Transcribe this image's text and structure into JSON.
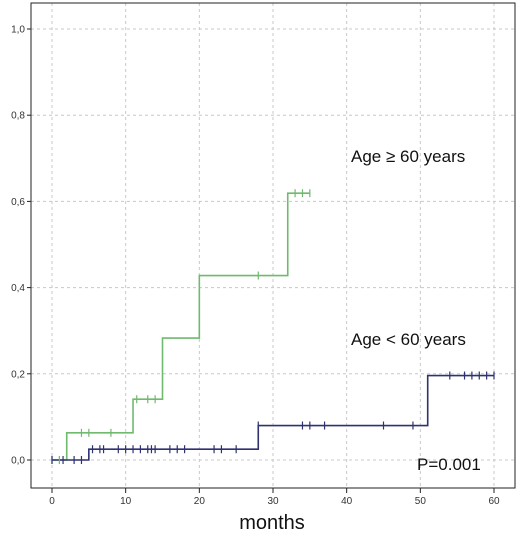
{
  "chart_data": {
    "type": "line",
    "title": "",
    "xlabel": "months",
    "ylabel": "",
    "xlim": [
      -3,
      62
    ],
    "ylim": [
      -0.03,
      1.04
    ],
    "x_ticks": [
      0,
      10,
      20,
      30,
      40,
      50,
      60
    ],
    "x_tick_labels": [
      "0",
      "10",
      "20",
      "30",
      "40",
      "50",
      "60"
    ],
    "y_ticks": [
      0.0,
      0.2,
      0.4,
      0.6,
      0.8,
      1.0
    ],
    "y_tick_labels": [
      "0,0",
      "0,2",
      "0,4",
      "0,6",
      "0,8",
      "1,0"
    ],
    "grid": true,
    "colors": {
      "green": "#6fba6f",
      "navy": "#2e3270",
      "grid": "#c8c8c8",
      "frame": "#222222"
    },
    "series": [
      {
        "name": "Age ≥ 60 years",
        "color": "#6fba6f",
        "steps": [
          [
            0,
            0
          ],
          [
            2,
            0.063
          ],
          [
            11,
            0.141
          ],
          [
            15,
            0.283
          ],
          [
            20,
            0.428
          ],
          [
            32,
            0.619
          ]
        ],
        "end_x": 35,
        "censored": [
          [
            0,
            0
          ],
          [
            1,
            0
          ],
          [
            4,
            0.063
          ],
          [
            5,
            0.063
          ],
          [
            8,
            0.063
          ],
          [
            11.5,
            0.141
          ],
          [
            13,
            0.141
          ],
          [
            14,
            0.141
          ],
          [
            28,
            0.428
          ],
          [
            33,
            0.619
          ],
          [
            34,
            0.619
          ],
          [
            35,
            0.619
          ]
        ]
      },
      {
        "name": "Age < 60 years",
        "color": "#2e3270",
        "steps": [
          [
            0,
            0
          ],
          [
            5,
            0.025
          ],
          [
            28,
            0.08
          ],
          [
            51,
            0.196
          ]
        ],
        "end_x": 60,
        "censored": [
          [
            0,
            0
          ],
          [
            1.5,
            0
          ],
          [
            3,
            0
          ],
          [
            4,
            0
          ],
          [
            5.5,
            0.025
          ],
          [
            6.5,
            0.025
          ],
          [
            7,
            0.025
          ],
          [
            9,
            0.025
          ],
          [
            10,
            0.025
          ],
          [
            11,
            0.025
          ],
          [
            12,
            0.025
          ],
          [
            13,
            0.025
          ],
          [
            13.5,
            0.025
          ],
          [
            14,
            0.025
          ],
          [
            16,
            0.025
          ],
          [
            17,
            0.025
          ],
          [
            18,
            0.025
          ],
          [
            22,
            0.025
          ],
          [
            23,
            0.025
          ],
          [
            25,
            0.025
          ],
          [
            28,
            0.08
          ],
          [
            34,
            0.08
          ],
          [
            35,
            0.08
          ],
          [
            37,
            0.08
          ],
          [
            45,
            0.08
          ],
          [
            49,
            0.08
          ],
          [
            54,
            0.196
          ],
          [
            56,
            0.196
          ],
          [
            57,
            0.196
          ],
          [
            58,
            0.196
          ],
          [
            59,
            0.196
          ],
          [
            60,
            0.196
          ]
        ]
      }
    ],
    "annotations": [
      {
        "id": "age-ge-60-label",
        "text": "Age ≥ 60 years"
      },
      {
        "id": "age-lt-60-label",
        "text": "Age < 60 years"
      },
      {
        "id": "p-value-label",
        "text": "P=0.001"
      }
    ]
  }
}
